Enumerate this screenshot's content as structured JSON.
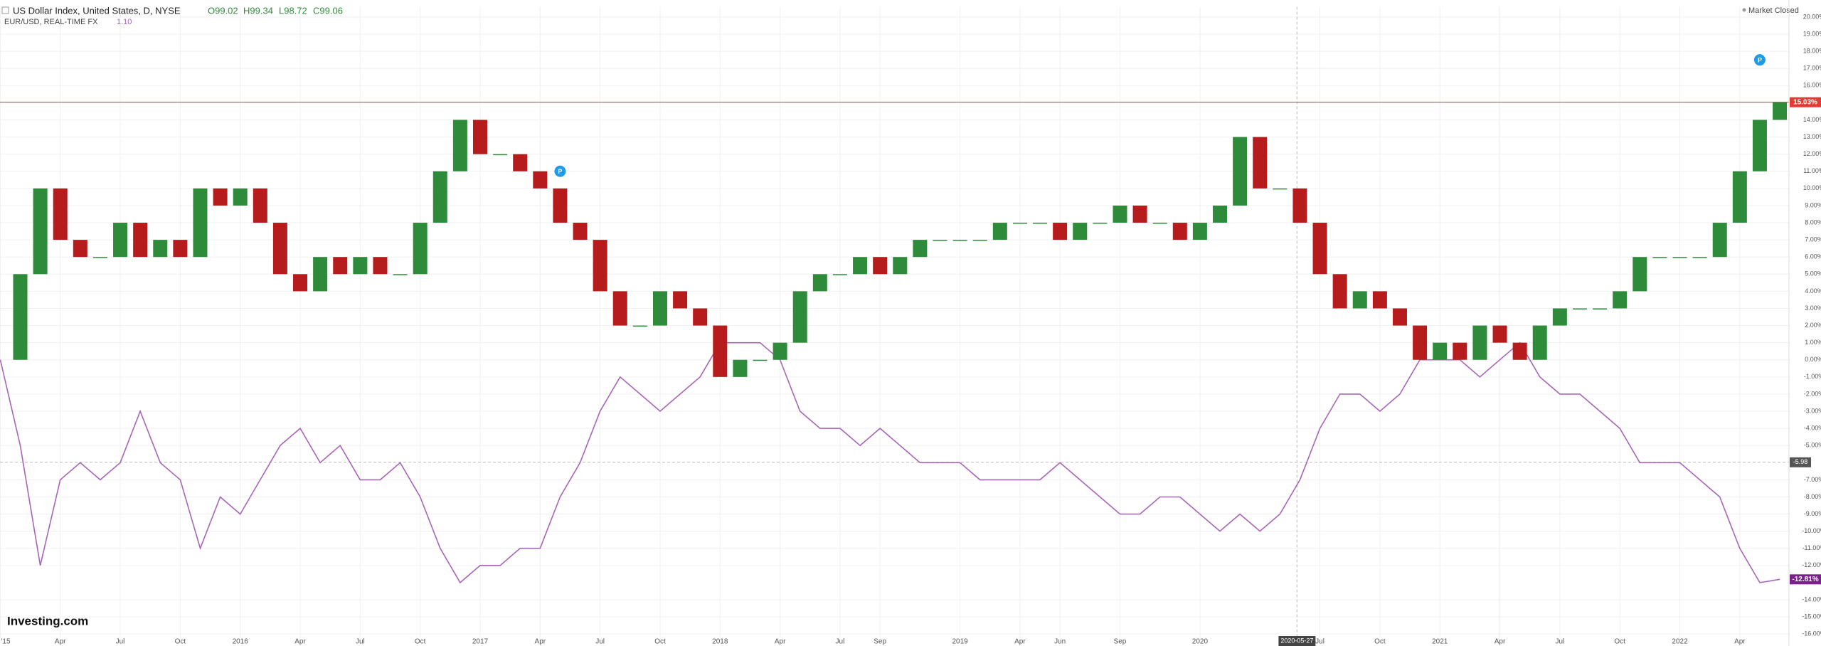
{
  "chart_data": {
    "type": "candlestick-compare",
    "header": {
      "title": "US Dollar Index, United States, D, NYSE",
      "open": "O99.02",
      "high": "H99.34",
      "low": "L98.72",
      "close": "C99.06",
      "compare": "EUR/USD, REAL-TIME FX",
      "compare_value": "1.10",
      "status": "Market Closed"
    },
    "brand": "Investing.com",
    "x": [
      "2015-01",
      "2015-02",
      "2015-03",
      "2015-04",
      "2015-05",
      "2015-06",
      "2015-07",
      "2015-08",
      "2015-09",
      "2015-10",
      "2015-11",
      "2015-12",
      "2016-01",
      "2016-02",
      "2016-03",
      "2016-04",
      "2016-05",
      "2016-06",
      "2016-07",
      "2016-08",
      "2016-09",
      "2016-10",
      "2016-11",
      "2016-12",
      "2017-01",
      "2017-02",
      "2017-03",
      "2017-04",
      "2017-05",
      "2017-06",
      "2017-07",
      "2017-08",
      "2017-09",
      "2017-10",
      "2017-11",
      "2017-12",
      "2018-01",
      "2018-02",
      "2018-03",
      "2018-04",
      "2018-05",
      "2018-06",
      "2018-07",
      "2018-08",
      "2018-09",
      "2018-10",
      "2018-11",
      "2018-12",
      "2019-01",
      "2019-02",
      "2019-03",
      "2019-04",
      "2019-05",
      "2019-06",
      "2019-07",
      "2019-08",
      "2019-09",
      "2019-10",
      "2019-11",
      "2019-12",
      "2020-01",
      "2020-02",
      "2020-03",
      "2020-04",
      "2020-05",
      "2020-06",
      "2020-07",
      "2020-08",
      "2020-09",
      "2020-10",
      "2020-11",
      "2020-12",
      "2021-01",
      "2021-02",
      "2021-03",
      "2021-04",
      "2021-05",
      "2021-06",
      "2021-07",
      "2021-08",
      "2021-09",
      "2021-10",
      "2021-11",
      "2021-12",
      "2022-01",
      "2022-02",
      "2022-03",
      "2022-04",
      "2022-05",
      "2022-06"
    ],
    "series": [
      {
        "name": "US Dollar Index",
        "up_color": "#2e8b3a",
        "down_color": "#b71c1c",
        "label_color": "#e53935",
        "last_label": "15.03%",
        "values": [
          0,
          5,
          10,
          7,
          6,
          6,
          8,
          6,
          7,
          6,
          10,
          9,
          10,
          8,
          5,
          4,
          6,
          5,
          6,
          5,
          5,
          8,
          11,
          14,
          12,
          12,
          11,
          10,
          8,
          7,
          4,
          2,
          2,
          4,
          3,
          2,
          -1,
          0,
          0,
          1,
          4,
          5,
          5,
          6,
          5,
          6,
          7,
          7,
          7,
          7,
          8,
          8,
          8,
          7,
          8,
          8,
          9,
          8,
          8,
          7,
          8,
          9,
          13,
          10,
          10,
          8,
          5,
          3,
          4,
          3,
          2,
          0,
          1,
          0,
          2,
          1,
          0,
          2,
          3,
          3,
          3,
          4,
          6,
          6,
          6,
          6,
          8,
          11,
          14,
          15.03
        ]
      },
      {
        "name": "EUR/USD",
        "color": "#a865b8",
        "label_color": "#7b1f8a",
        "last_label": "-12.81%",
        "values": [
          0,
          -5,
          -12,
          -7,
          -6,
          -7,
          -6,
          -3,
          -6,
          -7,
          -11,
          -8,
          -9,
          -7,
          -5,
          -4,
          -6,
          -5,
          -7,
          -7,
          -6,
          -8,
          -11,
          -13,
          -12,
          -12,
          -11,
          -11,
          -8,
          -6,
          -3,
          -1,
          -2,
          -3,
          -2,
          -1,
          1,
          1,
          1,
          0,
          -3,
          -4,
          -4,
          -5,
          -4,
          -5,
          -6,
          -6,
          -6,
          -7,
          -7,
          -7,
          -7,
          -6,
          -7,
          -8,
          -9,
          -9,
          -8,
          -8,
          -9,
          -10,
          -9,
          -10,
          -9,
          -7,
          -4,
          -2,
          -2,
          -3,
          -2,
          0,
          0,
          0,
          -1,
          0,
          1,
          -1,
          -2,
          -2,
          -3,
          -4,
          -6,
          -6,
          -6,
          -7,
          -8,
          -11,
          -13,
          -12.81
        ]
      }
    ],
    "event_markers": [
      {
        "x": "2017-05",
        "y": 11,
        "label": "P"
      },
      {
        "x": "2022-05",
        "y": 17.5,
        "label": "P"
      }
    ],
    "crosshair": {
      "x": {
        "value": "2020-05-27",
        "label": "2020-05-27"
      },
      "y": {
        "value": -5.98,
        "label": "-5.98"
      }
    },
    "xlim": [
      "2014-12-31",
      "2022-06-15"
    ],
    "xticks": [
      {
        "value": "2015-01",
        "label": "'15"
      },
      {
        "value": "2015-04",
        "label": "Apr"
      },
      {
        "value": "2015-07",
        "label": "Jul"
      },
      {
        "value": "2015-10",
        "label": "Oct"
      },
      {
        "value": "2016-01",
        "label": "2016"
      },
      {
        "value": "2016-04",
        "label": "Apr"
      },
      {
        "value": "2016-07",
        "label": "Jul"
      },
      {
        "value": "2016-10",
        "label": "Oct"
      },
      {
        "value": "2017-01",
        "label": "2017"
      },
      {
        "value": "2017-04",
        "label": "Apr"
      },
      {
        "value": "2017-07",
        "label": "Jul"
      },
      {
        "value": "2017-10",
        "label": "Oct"
      },
      {
        "value": "2018-01",
        "label": "2018"
      },
      {
        "value": "2018-04",
        "label": "Apr"
      },
      {
        "value": "2018-07",
        "label": "Jul"
      },
      {
        "value": "2018-09",
        "label": "Sep"
      },
      {
        "value": "2019-01",
        "label": "2019"
      },
      {
        "value": "2019-04",
        "label": "Apr"
      },
      {
        "value": "2019-06",
        "label": "Jun"
      },
      {
        "value": "2019-09",
        "label": "Sep"
      },
      {
        "value": "2020-01",
        "label": "2020"
      },
      {
        "value": "2020-07",
        "label": "Jul"
      },
      {
        "value": "2020-10",
        "label": "Oct"
      },
      {
        "value": "2021-01",
        "label": "2021"
      },
      {
        "value": "2021-04",
        "label": "Apr"
      },
      {
        "value": "2021-07",
        "label": "Jul"
      },
      {
        "value": "2021-10",
        "label": "Oct"
      },
      {
        "value": "2022-01",
        "label": "2022"
      },
      {
        "value": "2022-04",
        "label": "Apr"
      }
    ],
    "ylim": [
      -16.2,
      20.6
    ],
    "yticks": [
      {
        "value": 20,
        "label": "20.00%"
      },
      {
        "value": 19,
        "label": "19.00%"
      },
      {
        "value": 18,
        "label": "18.00%"
      },
      {
        "value": 17,
        "label": "17.00%"
      },
      {
        "value": 16,
        "label": "16.00%"
      },
      {
        "value": 15,
        "label": "15.00%"
      },
      {
        "value": 14,
        "label": "14.00%"
      },
      {
        "value": 13,
        "label": "13.00%"
      },
      {
        "value": 12,
        "label": "12.00%"
      },
      {
        "value": 11,
        "label": "11.00%"
      },
      {
        "value": 10,
        "label": "10.00%"
      },
      {
        "value": 9,
        "label": "9.00%"
      },
      {
        "value": 8,
        "label": "8.00%"
      },
      {
        "value": 7,
        "label": "7.00%"
      },
      {
        "value": 6,
        "label": "6.00%"
      },
      {
        "value": 5,
        "label": "5.00%"
      },
      {
        "value": 4,
        "label": "4.00%"
      },
      {
        "value": 3,
        "label": "3.00%"
      },
      {
        "value": 2,
        "label": "2.00%"
      },
      {
        "value": 1,
        "label": "1.00%"
      },
      {
        "value": 0,
        "label": "0.00%"
      },
      {
        "value": -1,
        "label": "-1.00%"
      },
      {
        "value": -2,
        "label": "-2.00%"
      },
      {
        "value": -3,
        "label": "-3.00%"
      },
      {
        "value": -4,
        "label": "-4.00%"
      },
      {
        "value": -5,
        "label": "-5.00%"
      },
      {
        "value": -7,
        "label": "-7.00%"
      },
      {
        "value": -8,
        "label": "-8.00%"
      },
      {
        "value": -9,
        "label": "-9.00%"
      },
      {
        "value": -10,
        "label": "-10.00%"
      },
      {
        "value": -11,
        "label": "-11.00%"
      },
      {
        "value": -12,
        "label": "-12.00%"
      },
      {
        "value": -14,
        "label": "-14.00%"
      },
      {
        "value": -15,
        "label": "-15.00%"
      },
      {
        "value": -16,
        "label": "-16.00%"
      }
    ],
    "grid": true
  }
}
